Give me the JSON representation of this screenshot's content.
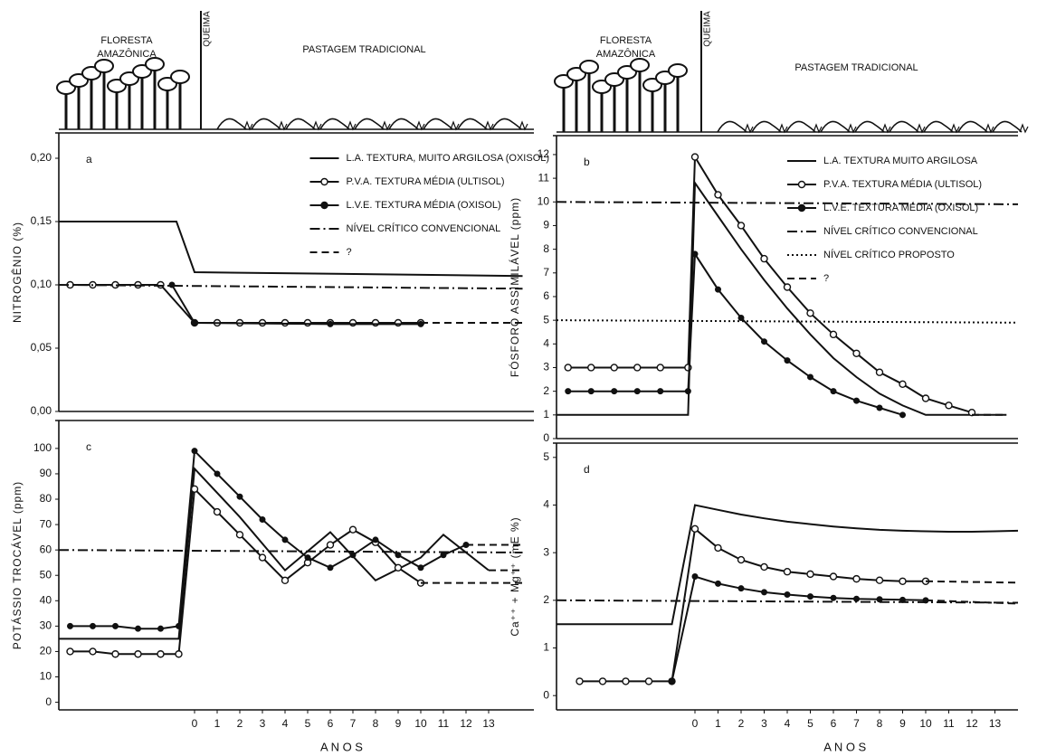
{
  "chart_data": [
    {
      "type": "line",
      "label": "a",
      "ylabel": "NITROGÊNIO (%)",
      "legend": "upper right",
      "header": {
        "forest": [
          "FLORESTA",
          "AMAZÔNICA"
        ],
        "burn": "QUEIMA",
        "pasture": "PASTAGEM TRADICIONAL"
      },
      "xlim": [
        -6,
        15
      ],
      "ylim": [
        0,
        0.22
      ],
      "yticks": [
        {
          "value": 0,
          "label": "0,00"
        },
        {
          "value": 0.05,
          "label": "0,05"
        },
        {
          "value": 0.1,
          "label": "0,10"
        },
        {
          "value": 0.15,
          "label": "0,15"
        },
        {
          "value": 0.2,
          "label": "0,20"
        }
      ],
      "series": [
        {
          "name": "L.A. TEXTURA, MUITO ARGILOSA (OXISOL)",
          "color": "#111",
          "style": "solid",
          "x": [
            -6,
            -0.8,
            0,
            14.5
          ],
          "values": [
            0.15,
            0.15,
            0.11,
            0.107
          ]
        },
        {
          "name": "P.V.A. TEXTURA MÉDIA (ULTISOL)",
          "color": "#111",
          "style": "solid",
          "marker": "open",
          "x": [
            -5.5,
            -4.5,
            -3.5,
            -2.5,
            -1.5,
            0,
            1,
            2,
            3,
            4,
            5,
            6,
            7,
            8,
            9,
            10
          ],
          "values": [
            0.1,
            0.1,
            0.1,
            0.1,
            0.1,
            0.07,
            0.07,
            0.07,
            0.07,
            0.07,
            0.07,
            0.07,
            0.07,
            0.07,
            0.07,
            0.07
          ]
        },
        {
          "name": "L.V.E. TEXTURA MÉDIA (OXISOL)",
          "color": "#111",
          "style": "solid",
          "marker": "filled",
          "x": [
            -1,
            0,
            6,
            10
          ],
          "values": [
            0.1,
            0.07,
            0.069,
            0.069
          ]
        },
        {
          "name": "NÍVEL CRÍTICO CONVENCIONAL",
          "color": "#111",
          "style": "dashdot",
          "x": [
            -6,
            14.5
          ],
          "values": [
            0.1,
            0.097
          ]
        },
        {
          "name": "?",
          "color": "#111",
          "style": "dashed",
          "x": [
            10,
            14.5
          ],
          "values": [
            0.07,
            0.07
          ]
        }
      ]
    },
    {
      "type": "line",
      "label": "b",
      "ylabel": "FÓSFORO ASSIMILÁVEL (ppm)",
      "legend": "upper right",
      "header": {
        "forest": [
          "FLORESTA",
          "AMAZÔNICA"
        ],
        "burn": "QUEIMA",
        "pasture": "PASTAGEM TRADICIONAL"
      },
      "xlim": [
        -6,
        14
      ],
      "ylim": [
        0,
        12.8
      ],
      "yticks": [
        0,
        1,
        2,
        3,
        4,
        5,
        6,
        7,
        8,
        9,
        10,
        11,
        12
      ],
      "series": [
        {
          "name": "L.A. TEXTURA MUITO ARGILOSA",
          "color": "#111",
          "style": "solid",
          "x": [
            -6,
            -0.3,
            0,
            1,
            2,
            3,
            4,
            5,
            6,
            7,
            8,
            9,
            10,
            13.5
          ],
          "values": [
            1,
            1,
            10.8,
            9.4,
            8.0,
            6.7,
            5.5,
            4.4,
            3.4,
            2.6,
            1.9,
            1.4,
            1.0,
            1.0
          ]
        },
        {
          "name": "P.V.A. TEXTURA MÉDIA (ULTISOL)",
          "color": "#111",
          "style": "solid",
          "marker": "open",
          "x": [
            -5.5,
            -4.5,
            -3.5,
            -2.5,
            -1.5,
            -0.3,
            0,
            1,
            2,
            3,
            4,
            5,
            6,
            7,
            8,
            9,
            10,
            11,
            12
          ],
          "values": [
            3,
            3,
            3,
            3,
            3,
            3,
            11.9,
            10.3,
            9.0,
            7.6,
            6.4,
            5.3,
            4.4,
            3.6,
            2.8,
            2.3,
            1.7,
            1.4,
            1.1
          ]
        },
        {
          "name": "L.V.E. TEXTURA MÉDIA (OXISOL)",
          "color": "#111",
          "style": "solid",
          "marker": "filled",
          "x": [
            -5.5,
            -4.5,
            -3.5,
            -2.5,
            -1.5,
            -0.3,
            0,
            1,
            2,
            3,
            4,
            5,
            6,
            7,
            8,
            9
          ],
          "values": [
            2,
            2,
            2,
            2,
            2,
            2,
            7.8,
            6.3,
            5.1,
            4.1,
            3.3,
            2.6,
            2.0,
            1.6,
            1.3,
            1.0
          ]
        },
        {
          "name": "NÍVEL CRÍTICO CONVENCIONAL",
          "color": "#111",
          "style": "dashdot",
          "x": [
            -6,
            14
          ],
          "values": [
            10,
            9.9
          ]
        },
        {
          "name": "NÍVEL CRÍTICO PROPOSTO",
          "color": "#111",
          "style": "dotted",
          "x": [
            -6,
            14
          ],
          "values": [
            5,
            4.9
          ]
        },
        {
          "name": "?",
          "color": "#111",
          "style": "dashed",
          "x": [
            12,
            13.5
          ],
          "values": [
            1,
            1
          ]
        }
      ]
    },
    {
      "type": "line",
      "label": "c",
      "ylabel": "POTÁSSIO TROCÁVEL (ppm)",
      "xlabel": "A N O S",
      "xlim": [
        -6,
        15
      ],
      "ylim": [
        -3,
        111
      ],
      "yticks": [
        0,
        10,
        20,
        30,
        40,
        50,
        60,
        70,
        80,
        90,
        100
      ],
      "xticks": [
        0,
        1,
        2,
        3,
        4,
        5,
        6,
        7,
        8,
        9,
        10,
        11,
        12,
        13
      ],
      "series": [
        {
          "color": "#111",
          "style": "solid",
          "x": [
            -6,
            -0.7,
            0,
            2,
            4,
            6,
            8,
            10,
            11,
            13
          ],
          "values": [
            25,
            25,
            92,
            73,
            52,
            67,
            48,
            57,
            66,
            52
          ]
        },
        {
          "color": "#111",
          "style": "solid",
          "marker": "open",
          "x": [
            -5.5,
            -4.5,
            -3.5,
            -2.5,
            -1.5,
            -0.7,
            0,
            1,
            2,
            3,
            4,
            5,
            6,
            7,
            8,
            9,
            10
          ],
          "values": [
            20,
            20,
            19,
            19,
            19,
            19,
            84,
            75,
            66,
            57,
            48,
            55,
            62,
            68,
            63,
            53,
            47
          ]
        },
        {
          "color": "#111",
          "style": "solid",
          "marker": "filled",
          "x": [
            -5.5,
            -4.5,
            -3.5,
            -2.5,
            -1.5,
            -0.7,
            0,
            1,
            2,
            3,
            4,
            5,
            6,
            7,
            8,
            9,
            10,
            11,
            12
          ],
          "values": [
            30,
            30,
            30,
            29,
            29,
            30,
            99,
            90,
            81,
            72,
            64,
            57,
            53,
            58,
            64,
            58,
            53,
            58,
            62
          ]
        },
        {
          "color": "#111",
          "style": "dashdot",
          "x": [
            -6,
            14.5
          ],
          "values": [
            60,
            59
          ]
        },
        {
          "color": "#111",
          "style": "dashed",
          "x": [
            12,
            14.5,
            null,
            13,
            14.5,
            null,
            10,
            14.5
          ],
          "values": [
            62,
            62,
            null,
            52,
            52,
            null,
            47,
            47
          ]
        }
      ]
    },
    {
      "type": "line",
      "label": "d",
      "ylabel": "Ca⁺⁺ + Mg⁺⁺ (mE %)",
      "xlabel": "A N O S",
      "xlim": [
        -6,
        14
      ],
      "ylim": [
        -0.3,
        5.3
      ],
      "yticks": [
        0,
        1,
        2,
        3,
        4,
        5
      ],
      "xticks": [
        0,
        1,
        2,
        3,
        4,
        5,
        6,
        7,
        8,
        9,
        10,
        11,
        12,
        13
      ],
      "series": [
        {
          "color": "#111",
          "style": "solid",
          "x": [
            -6,
            -1,
            0,
            1,
            2,
            3,
            4,
            5,
            6,
            7,
            8,
            9,
            10,
            11,
            12,
            13,
            14
          ],
          "values": [
            1.5,
            1.5,
            4.0,
            3.9,
            3.8,
            3.72,
            3.65,
            3.6,
            3.55,
            3.51,
            3.48,
            3.46,
            3.45,
            3.44,
            3.44,
            3.45,
            3.46
          ]
        },
        {
          "color": "#111",
          "style": "solid",
          "marker": "open",
          "x": [
            -5,
            -4,
            -3,
            -2,
            -1,
            0,
            1,
            2,
            3,
            4,
            5,
            6,
            7,
            8,
            9,
            10
          ],
          "values": [
            0.3,
            0.3,
            0.3,
            0.3,
            0.3,
            3.5,
            3.1,
            2.85,
            2.7,
            2.6,
            2.55,
            2.5,
            2.45,
            2.42,
            2.4,
            2.4
          ]
        },
        {
          "color": "#111",
          "style": "solid",
          "marker": "filled",
          "x": [
            -1,
            0,
            1,
            2,
            3,
            4,
            5,
            6,
            7,
            8,
            9,
            10
          ],
          "values": [
            0.3,
            2.5,
            2.35,
            2.25,
            2.17,
            2.12,
            2.08,
            2.05,
            2.03,
            2.02,
            2.01,
            2.0
          ]
        },
        {
          "color": "#111",
          "style": "dashdot",
          "x": [
            -6,
            14
          ],
          "values": [
            2,
            1.95
          ]
        },
        {
          "color": "#111",
          "style": "dashed",
          "x": [
            10,
            14,
            null,
            10,
            14
          ],
          "values": [
            2.4,
            2.37,
            null,
            2.0,
            1.93
          ]
        }
      ]
    }
  ]
}
